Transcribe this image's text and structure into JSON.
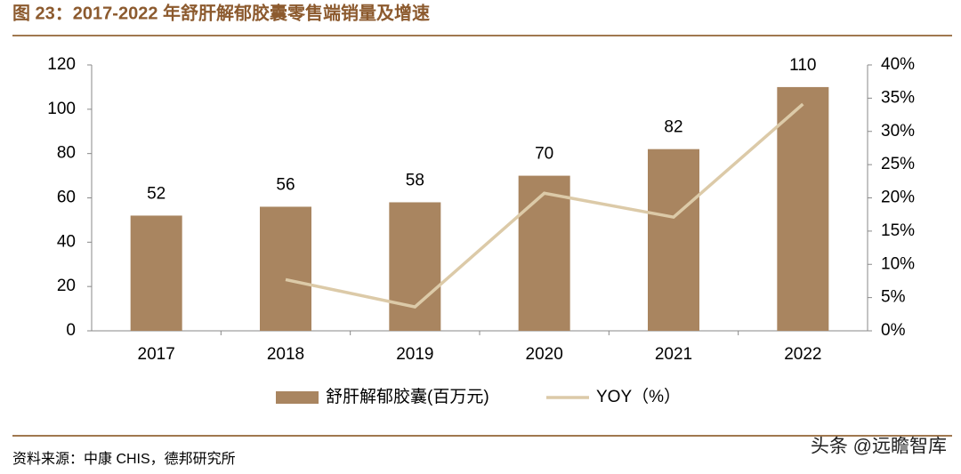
{
  "chart_data": {
    "type": "bar",
    "title": "图 23：2017-2022 年舒肝解郁胶囊零售端销量及增速",
    "categories": [
      "2017",
      "2018",
      "2019",
      "2020",
      "2021",
      "2022"
    ],
    "series": [
      {
        "name": "舒肝解郁胶囊(百万元)",
        "type": "bar",
        "color": "#a98560",
        "values": [
          52,
          56,
          58,
          70,
          82,
          110
        ]
      },
      {
        "name": "YOY（%）",
        "type": "line",
        "axis": "y2",
        "color": "#dccaa8",
        "values": [
          null,
          7.7,
          3.6,
          20.7,
          17.1,
          34.1
        ]
      }
    ],
    "ylim": [
      0,
      120
    ],
    "yticks": [
      0,
      20,
      40,
      60,
      80,
      100,
      120
    ],
    "y2lim": [
      0,
      40
    ],
    "y2ticks": [
      {
        "value": 0,
        "label": "0%"
      },
      {
        "value": 5,
        "label": "5%"
      },
      {
        "value": 10,
        "label": "10%"
      },
      {
        "value": 15,
        "label": "15%"
      },
      {
        "value": 20,
        "label": "20%"
      },
      {
        "value": 25,
        "label": "25%"
      },
      {
        "value": 30,
        "label": "30%"
      },
      {
        "value": 35,
        "label": "35%"
      },
      {
        "value": 40,
        "label": "40%"
      }
    ],
    "legend": "bottom",
    "source": "资料来源：中康 CHIS，德邦研究所",
    "watermark": "头条 @远瞻智库"
  }
}
